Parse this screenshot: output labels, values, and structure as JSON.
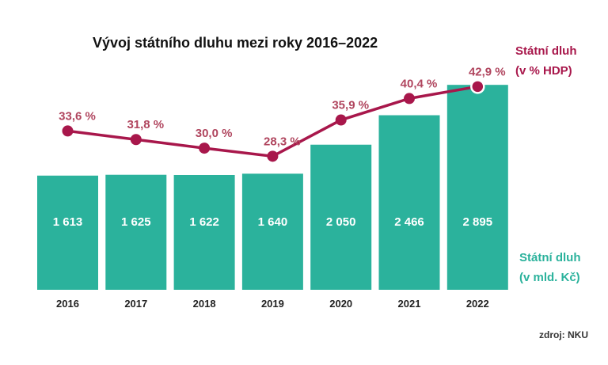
{
  "chart_data": {
    "type": "bar+line",
    "title": "Vývoj státního dluhu mezi roky 2016–2022",
    "categories": [
      "2016",
      "2017",
      "2018",
      "2019",
      "2020",
      "2021",
      "2022"
    ],
    "series": [
      {
        "name": "Státní dluh (v mld. Kč)",
        "type": "bar",
        "values": [
          1613,
          1625,
          1622,
          1640,
          2050,
          2466,
          2895
        ],
        "labels": [
          "1 613",
          "1 625",
          "1 622",
          "1 640",
          "2 050",
          "2 466",
          "2 895"
        ],
        "color": "#2bb29c"
      },
      {
        "name": "Státní dluh (v % HDP)",
        "type": "line",
        "values": [
          33.6,
          31.8,
          30.0,
          28.3,
          35.9,
          40.4,
          42.9
        ],
        "labels": [
          "33,6 %",
          "31,8 %",
          "30,0 %",
          "28,3 %",
          "35,9 %",
          "40,4 %",
          "42,9 %"
        ],
        "color": "#a8174b"
      }
    ],
    "legend": {
      "line": [
        "Státní dluh",
        "(v % HDP)"
      ],
      "bar": [
        "Státní dluh",
        "(v mld. Kč)"
      ]
    },
    "grid": false,
    "source": "zdroj: NKU"
  }
}
